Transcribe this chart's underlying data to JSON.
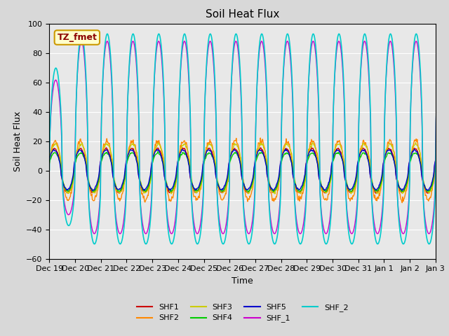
{
  "title": "Soil Heat Flux",
  "xlabel": "Time",
  "ylabel": "Soil Heat Flux",
  "ylim": [
    -60,
    100
  ],
  "yticks": [
    -60,
    -40,
    -20,
    0,
    20,
    40,
    60,
    80,
    100
  ],
  "legend_label": "TZ_fmet",
  "legend_bg": "#ffffcc",
  "legend_border": "#cc9900",
  "series_colors": {
    "SHF1": "#cc0000",
    "SHF2": "#ff8800",
    "SHF3": "#cccc00",
    "SHF4": "#00cc00",
    "SHF5": "#0000cc",
    "SHF_1": "#cc00cc",
    "SHF_2": "#00cccc"
  },
  "date_labels": [
    "Dec 19",
    "Dec 20",
    "Dec 21",
    "Dec 22",
    "Dec 23",
    "Dec 24",
    "Dec 25",
    "Dec 26",
    "Dec 27",
    "Dec 28",
    "Dec 29",
    "Dec 30",
    "Dec 31",
    "Jan 1",
    "Jan 2",
    "Jan 3"
  ]
}
